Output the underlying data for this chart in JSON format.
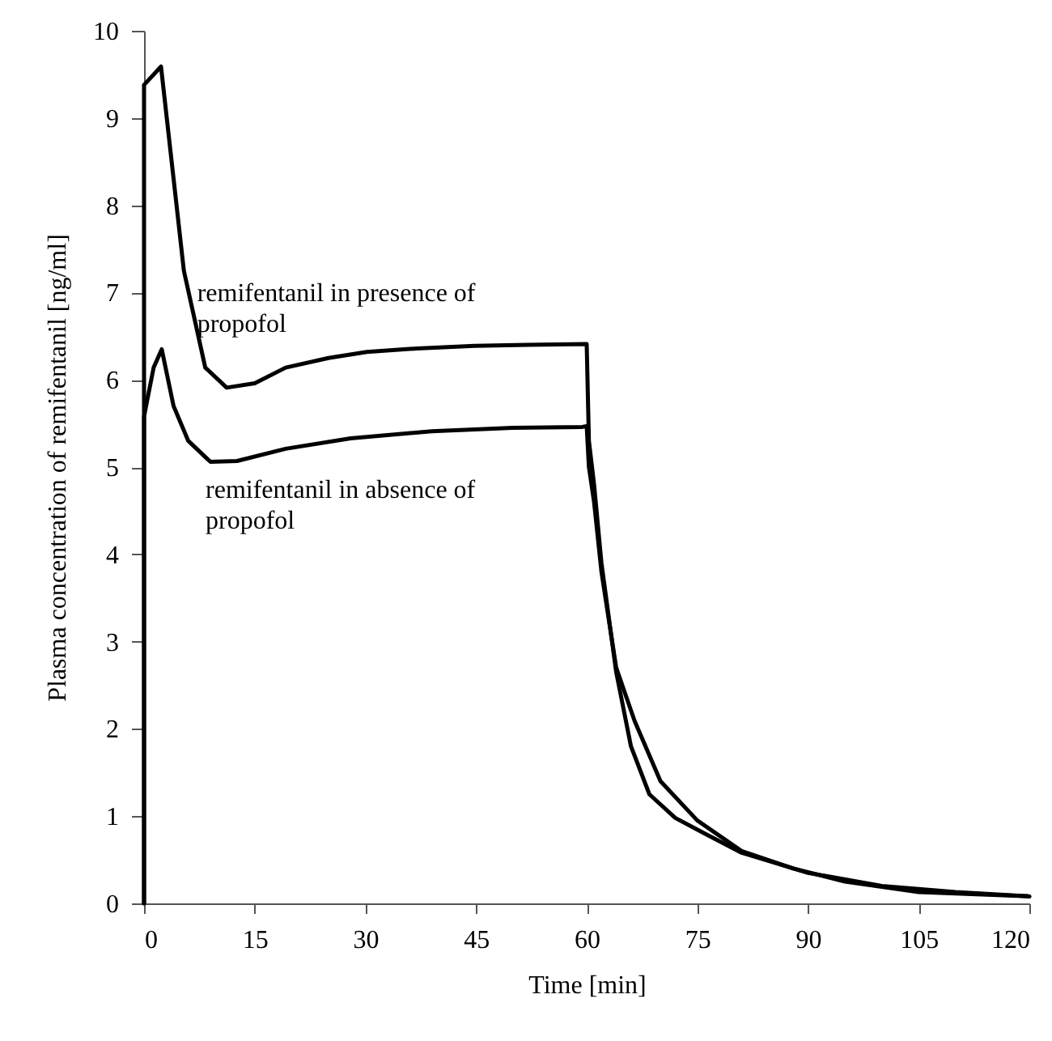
{
  "chart_data": {
    "type": "line",
    "xlabel": "Time [min]",
    "ylabel": "Plasma concentration of remifentanil [ng/ml]",
    "xlim": [
      0,
      120
    ],
    "xticks": [
      0,
      15,
      30,
      45,
      60,
      75,
      90,
      105,
      120
    ],
    "ylim": [
      0,
      10
    ],
    "yticks": [
      0,
      1,
      2,
      3,
      4,
      5,
      6,
      7,
      8,
      9,
      10
    ],
    "grid": false,
    "legend": false,
    "marker": "none",
    "line_style": "solid",
    "series": [
      {
        "name": "remifentanil in presence of propofol",
        "color": "#000000",
        "x": [
          0,
          0,
          2.3,
          5.4,
          8.3,
          11.2,
          15,
          19.2,
          25,
          30.2,
          37,
          44.8,
          52,
          60,
          60.3,
          61,
          62,
          64,
          66,
          68.5,
          72,
          76,
          81,
          90,
          100,
          110,
          120
        ],
        "values": [
          0,
          9.38,
          9.59,
          7.25,
          6.14,
          5.91,
          5.96,
          6.14,
          6.25,
          6.32,
          6.36,
          6.39,
          6.4,
          6.41,
          5.3,
          4.8,
          3.9,
          2.65,
          1.8,
          1.25,
          0.98,
          0.8,
          0.58,
          0.35,
          0.2,
          0.13,
          0.08
        ]
      },
      {
        "name": "remifentanil in absence of propofol",
        "color": "#000000",
        "x": [
          0,
          0,
          1.3,
          2.4,
          4,
          6,
          9,
          12.6,
          19.2,
          28,
          39,
          50,
          59.4,
          60,
          60.3,
          61,
          62,
          64,
          66.5,
          70,
          75,
          81,
          88,
          95,
          105,
          120
        ],
        "values": [
          0,
          5.58,
          6.14,
          6.35,
          5.7,
          5.3,
          5.06,
          5.07,
          5.21,
          5.33,
          5.41,
          5.45,
          5.46,
          5.47,
          5.0,
          4.6,
          3.8,
          2.7,
          2.09,
          1.4,
          0.95,
          0.6,
          0.4,
          0.25,
          0.13,
          0.08
        ]
      }
    ]
  }
}
